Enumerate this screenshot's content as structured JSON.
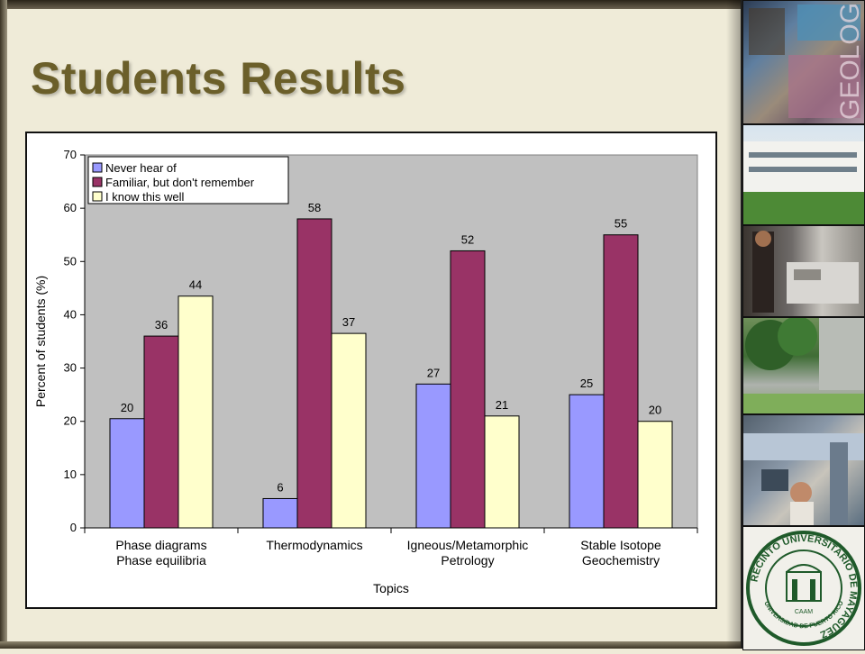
{
  "slide": {
    "title": "Students Results"
  },
  "sidebar": {
    "logo_text": "GEOLOGIA",
    "seal_ring_text": "RECINTO UNIVERSITARIO DE MAYAGUEZ",
    "seal_bottom_text": "UNIVERSIDAD DE PUERTO RICO",
    "seal_center_text": "CAAM"
  },
  "chart_data": {
    "type": "bar",
    "categories": [
      [
        "Phase diagrams",
        "Phase equilibria"
      ],
      [
        "Thermodynamics"
      ],
      [
        "Igneous/Metamorphic",
        "Petrology"
      ],
      [
        "Stable Isotope",
        "Geochemistry"
      ]
    ],
    "series": [
      {
        "name": "Never hear of",
        "values": [
          20.5,
          5.5,
          27,
          25
        ],
        "labels": [
          "20",
          "6",
          "27",
          "25"
        ],
        "color": "#9999ff"
      },
      {
        "name": "Familiar, but don't remember",
        "values": [
          36,
          58,
          52,
          55
        ],
        "labels": [
          "36",
          "58",
          "52",
          "55"
        ],
        "color": "#993366"
      },
      {
        "name": "I know this well",
        "values": [
          43.5,
          36.5,
          21,
          20
        ],
        "labels": [
          "44",
          "37",
          "21",
          "20"
        ],
        "color": "#ffffcc"
      }
    ],
    "xlabel": "Topics",
    "ylabel": "Percent of students (%)",
    "ylim": [
      0,
      70
    ],
    "yticks": [
      0,
      10,
      20,
      30,
      40,
      50,
      60,
      70
    ],
    "grid": false,
    "legend_position": "top-left",
    "plot_background": "#c0c0c0"
  }
}
